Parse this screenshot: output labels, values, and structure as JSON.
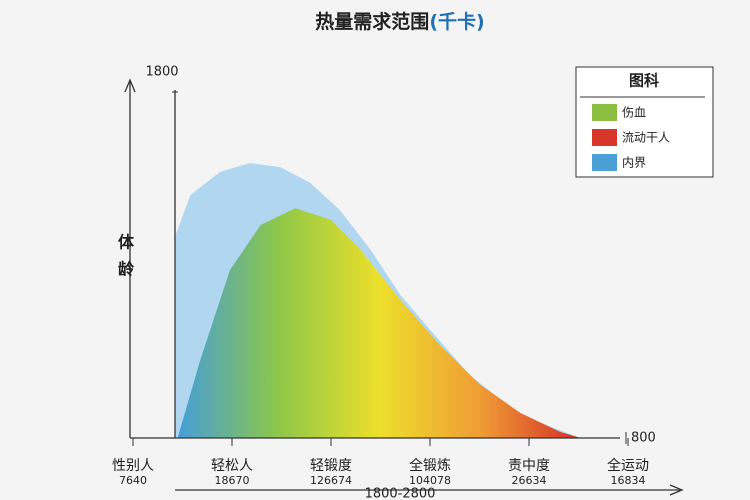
{
  "chart_data": {
    "type": "area",
    "title": "热量需求范围",
    "title_unit": "(千卡)",
    "y_label_top": "体",
    "y_label_bottom": "龄",
    "x_label": "1800-2800",
    "categories": [
      "性别人",
      "轻松人",
      "轻锻度",
      "全锻炼",
      "责中度",
      "全运动"
    ],
    "category_values": [
      "7640",
      "18670",
      "126674",
      "104078",
      "26634",
      "16834"
    ],
    "xlim": [
      0,
      5
    ],
    "ylim": [
      800,
      1800
    ],
    "yticks": [
      800,
      1800
    ],
    "series": [
      {
        "color": "#a9d4ee",
        "x": [
          0.43,
          0.43,
          0.58,
          0.88,
          1.18,
          1.49,
          1.79,
          2.09,
          2.4,
          2.7,
          3.0,
          3.4,
          3.91,
          4.52
        ],
        "values": [
          800,
          1355,
          1464,
          1527,
          1551,
          1540,
          1497,
          1423,
          1314,
          1191,
          1096,
          972,
          863,
          800
        ]
      },
      {
        "colors": [
          "#3f9bd8",
          "#8cc63f",
          "#f0e020",
          "#f39a2b",
          "#d7261e"
        ],
        "x": [
          0.45,
          0.68,
          0.98,
          1.29,
          1.64,
          2.0,
          2.3,
          2.7,
          3.1,
          3.51,
          3.91,
          4.31,
          4.52
        ],
        "values": [
          800,
          1013,
          1259,
          1382,
          1428,
          1396,
          1314,
          1177,
          1054,
          945,
          869,
          817,
          800
        ]
      }
    ],
    "legend": {
      "title": "图科",
      "entries": [
        {
          "name": "伤血",
          "color": "#8cbf3f"
        },
        {
          "name": "流动干人",
          "color": "#d9362b"
        },
        {
          "name": "内界",
          "color": "#4a9fd6"
        }
      ]
    }
  }
}
